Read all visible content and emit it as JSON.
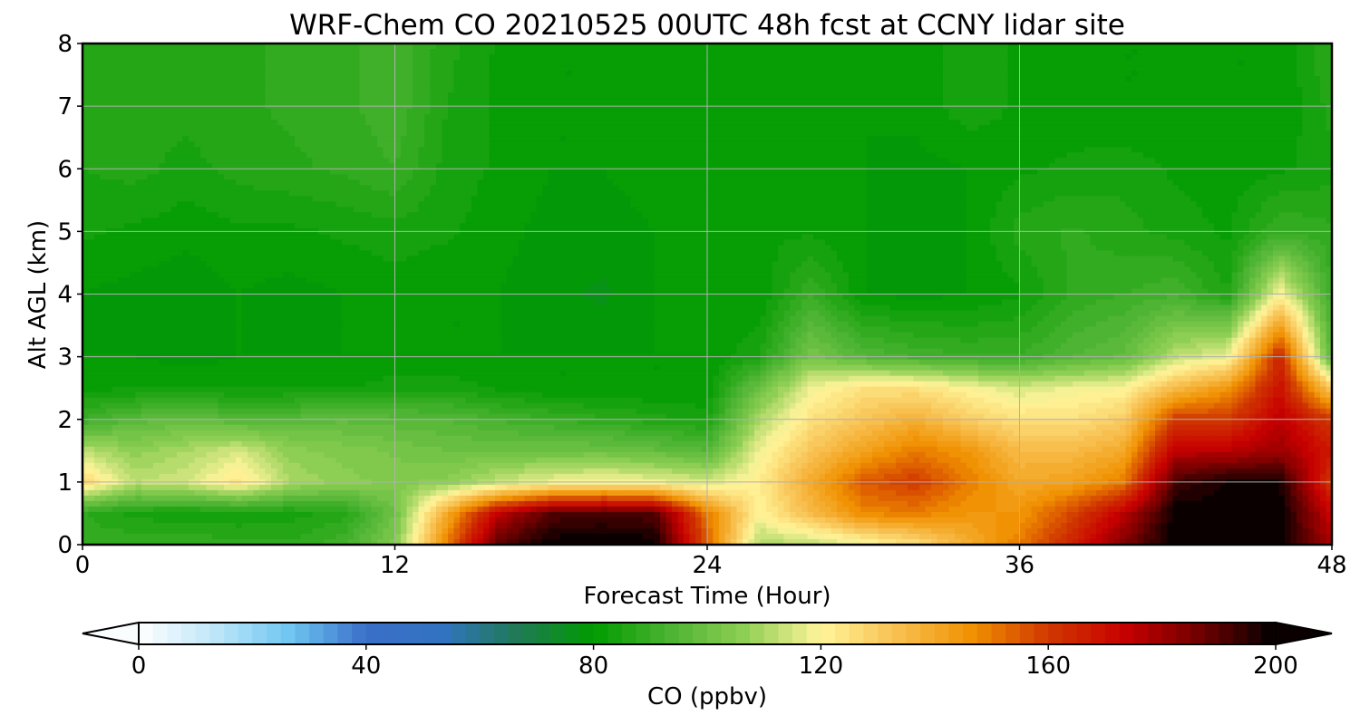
{
  "chart_data": {
    "type": "heatmap",
    "subtype": "filled-contour",
    "title": "WRF-Chem CO  20210525 00UTC 48h fcst at CCNY lidar site",
    "xlabel": "Forecast Time (Hour)",
    "ylabel": "Alt AGL (km)",
    "xlim": [
      0,
      48
    ],
    "ylim": [
      0,
      8
    ],
    "xticks": [
      0,
      12,
      24,
      36,
      48
    ],
    "yticks": [
      0,
      1,
      2,
      3,
      4,
      5,
      6,
      7,
      8
    ],
    "grid": true,
    "colorbar": {
      "label": "CO  (ppbv)",
      "range": [
        0,
        200
      ],
      "ticks": [
        0,
        40,
        80,
        120,
        160,
        200
      ],
      "extend": "both",
      "orientation": "horizontal",
      "colors": [
        "#ffffff",
        "#bfe6f8",
        "#6ec6f2",
        "#3a6fc8",
        "#3273c2",
        "#1f7a55",
        "#009b00",
        "#4cb332",
        "#8fcf55",
        "#fff59a",
        "#f8c050",
        "#f09000",
        "#d03800",
        "#c80000",
        "#700000",
        "#000000"
      ]
    },
    "x": [
      0,
      2,
      4,
      6,
      8,
      10,
      12,
      14,
      16,
      18,
      20,
      22,
      24,
      26,
      28,
      30,
      32,
      34,
      36,
      38,
      40,
      42,
      44,
      46,
      48
    ],
    "y": [
      0,
      0.5,
      1,
      1.5,
      2,
      2.5,
      3,
      4,
      5,
      6,
      7,
      8
    ],
    "values": [
      [
        88,
        90,
        90,
        88,
        88,
        92,
        104,
        150,
        190,
        200,
        200,
        200,
        155,
        110,
        112,
        118,
        125,
        138,
        150,
        165,
        185,
        200,
        200,
        200,
        178
      ],
      [
        88,
        84,
        83,
        83,
        84,
        86,
        100,
        140,
        175,
        190,
        192,
        190,
        150,
        120,
        135,
        148,
        150,
        145,
        145,
        158,
        175,
        200,
        200,
        200,
        172
      ],
      [
        128,
        112,
        115,
        124,
        110,
        106,
        104,
        106,
        113,
        118,
        120,
        118,
        115,
        122,
        140,
        155,
        160,
        150,
        140,
        142,
        150,
        192,
        198,
        198,
        160
      ],
      [
        112,
        106,
        110,
        115,
        106,
        104,
        102,
        100,
        100,
        100,
        100,
        98,
        95,
        118,
        132,
        142,
        150,
        145,
        135,
        135,
        140,
        175,
        175,
        180,
        168
      ],
      [
        90,
        96,
        98,
        95,
        96,
        97,
        96,
        95,
        92,
        90,
        88,
        86,
        84,
        110,
        125,
        132,
        138,
        130,
        125,
        125,
        130,
        160,
        160,
        175,
        160
      ],
      [
        82,
        82,
        82,
        82,
        82,
        82,
        84,
        84,
        82,
        80,
        80,
        80,
        80,
        100,
        118,
        125,
        125,
        120,
        115,
        118,
        120,
        135,
        145,
        170,
        130
      ],
      [
        80,
        80,
        79,
        80,
        80,
        80,
        80,
        80,
        80,
        80,
        80,
        80,
        80,
        85,
        102,
        95,
        92,
        90,
        90,
        95,
        98,
        112,
        118,
        165,
        95
      ],
      [
        80,
        79,
        78,
        80,
        79,
        80,
        81,
        80,
        80,
        78,
        77,
        80,
        80,
        80,
        90,
        80,
        79,
        80,
        82,
        88,
        90,
        92,
        85,
        120,
        90
      ],
      [
        83,
        82,
        81,
        82,
        82,
        83,
        84,
        83,
        81,
        79,
        79,
        80,
        81,
        82,
        82,
        80,
        79,
        80,
        86,
        88,
        86,
        84,
        82,
        90,
        88
      ],
      [
        85,
        86,
        84,
        86,
        87,
        88,
        90,
        84,
        82,
        80,
        80,
        81,
        82,
        82,
        81,
        80,
        79,
        80,
        82,
        83,
        84,
        82,
        81,
        82,
        84
      ],
      [
        86,
        86,
        86,
        87,
        88,
        89,
        92,
        85,
        82,
        80,
        80,
        81,
        82,
        82,
        81,
        80,
        81,
        84,
        82,
        81,
        80,
        80,
        80,
        80,
        86
      ],
      [
        87,
        86,
        87,
        87,
        88,
        89,
        92,
        86,
        82,
        80,
        80,
        81,
        82,
        82,
        80,
        80,
        81,
        84,
        82,
        81,
        80,
        80,
        80,
        80,
        88
      ]
    ]
  }
}
